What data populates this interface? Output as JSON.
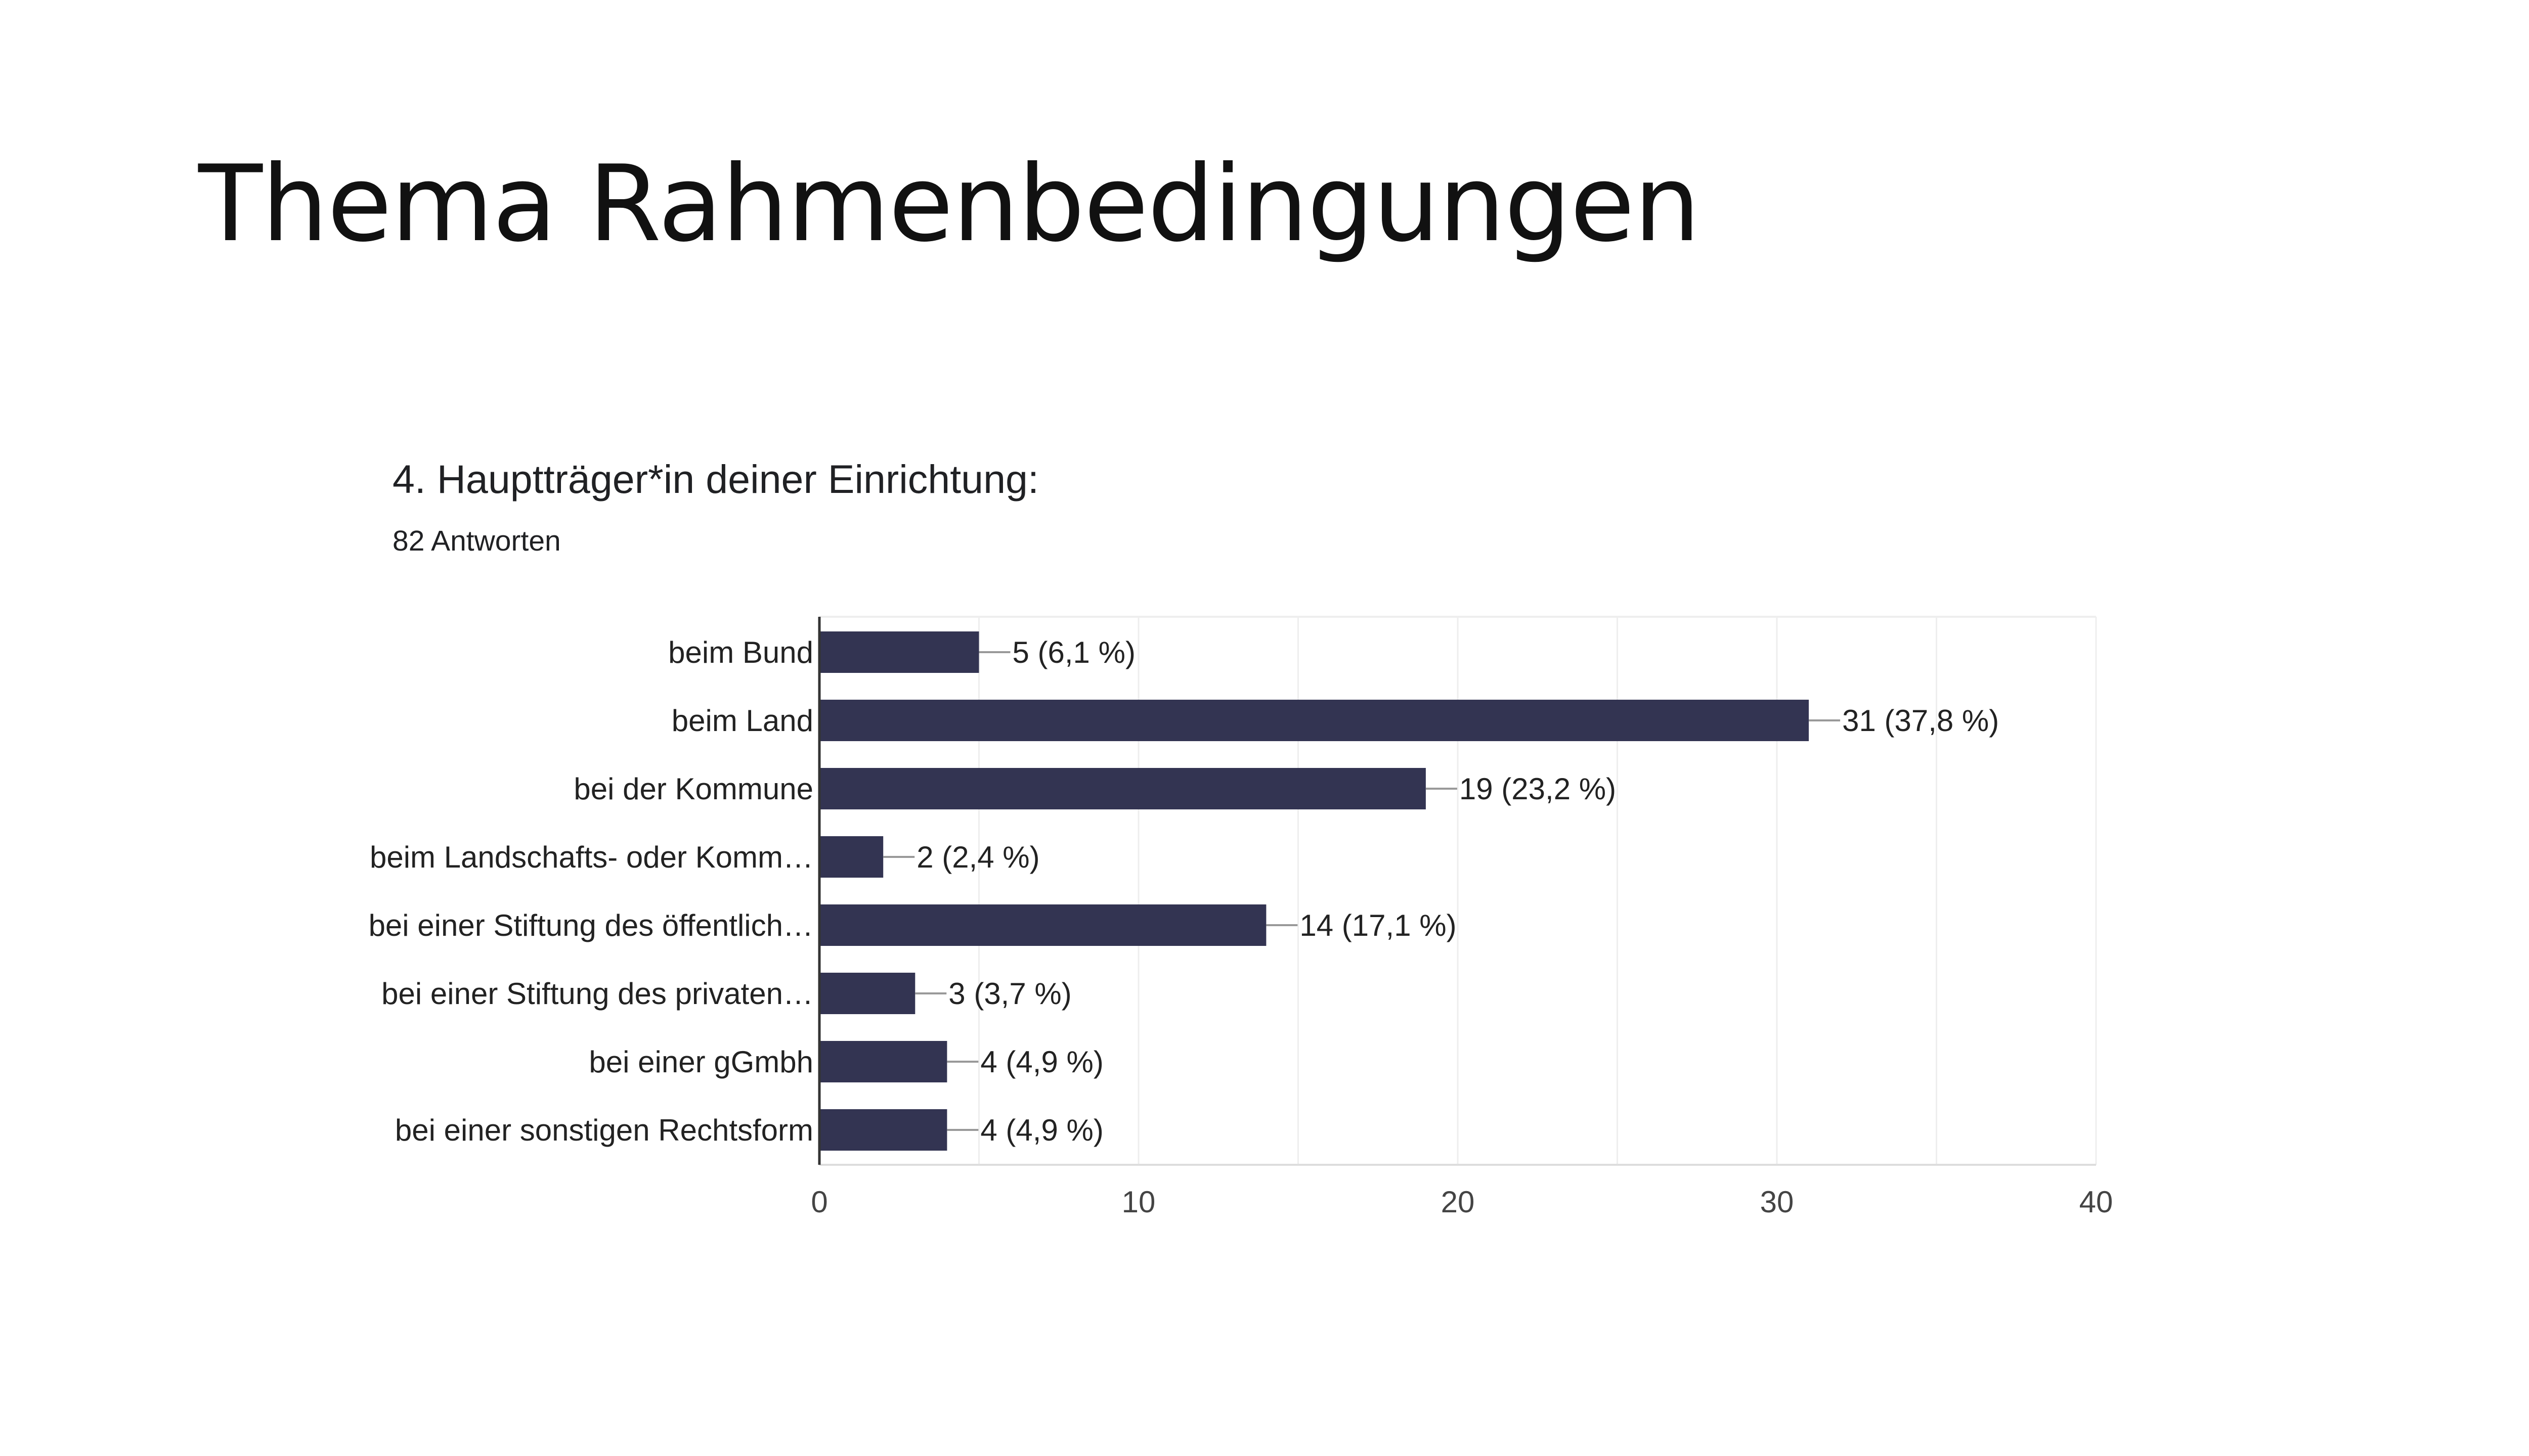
{
  "slide": {
    "title": "Thema Rahmenbedingungen"
  },
  "question": {
    "title": "4. Hauptträger*in deiner Einrichtung:",
    "responses": "82 Antworten"
  },
  "colors": {
    "bar": "#333452",
    "axis": "#333333",
    "grid": "#eeeeee",
    "leader": "#999999"
  },
  "chart_data": {
    "type": "bar",
    "orientation": "horizontal",
    "categories": [
      "beim Bund",
      "beim Land",
      "bei der Kommune",
      "beim Landschafts- oder Komm…",
      "bei einer Stiftung des öffentlich…",
      "bei einer Stiftung des privaten…",
      "bei einer gGmbh",
      "bei einer sonstigen Rechtsform"
    ],
    "values": [
      5,
      31,
      19,
      2,
      14,
      3,
      4,
      4
    ],
    "data_labels": [
      "5 (6,1 %)",
      "31 (37,8 %)",
      "19 (23,2 %)",
      "2 (2,4 %)",
      "14 (17,1 %)",
      "3 (3,7 %)",
      "4 (4,9 %)",
      "4 (4,9 %)"
    ],
    "xlim": [
      0,
      40
    ],
    "xticks": [
      0,
      10,
      20,
      30,
      40
    ],
    "xtick_labels": [
      "0",
      "10",
      "20",
      "30",
      "40"
    ],
    "grid": true,
    "legend": "none"
  }
}
